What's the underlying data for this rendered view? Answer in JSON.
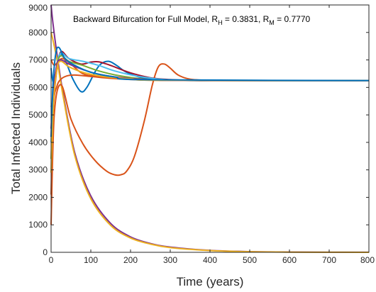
{
  "chart_data": {
    "type": "line",
    "title": "Backward Bifurcation for Full Model, R",
    "title_parts": {
      "prefix": "Backward Bifurcation for Full Model, R",
      "sub_h": "H",
      "mid": " = 0.3831, R",
      "sub_m": "M",
      "suffix": " = 0.7770"
    },
    "xlabel": "Time (years)",
    "ylabel": "Total Infected Individuals",
    "xlim": [
      0,
      800
    ],
    "ylim": [
      0,
      9000
    ],
    "xticks": [
      0,
      100,
      200,
      300,
      400,
      500,
      600,
      700,
      800
    ],
    "yticks": [
      0,
      1000,
      2000,
      3000,
      4000,
      5000,
      6000,
      7000,
      8000,
      9000
    ],
    "grid": false,
    "series": [
      {
        "color": "#7E2F8E",
        "x": [
          0,
          5,
          15,
          30,
          60,
          100,
          150,
          200,
          250,
          300,
          400,
          500,
          600,
          700,
          800
        ],
        "y": [
          9000,
          8300,
          7200,
          5800,
          3600,
          2050,
          1050,
          560,
          320,
          190,
          70,
          25,
          10,
          4,
          2
        ]
      },
      {
        "color": "#EDB120",
        "x": [
          0,
          5,
          15,
          30,
          60,
          100,
          150,
          200,
          250,
          300,
          400,
          500,
          600,
          700,
          800
        ],
        "y": [
          8000,
          7700,
          7000,
          5700,
          3500,
          1950,
          980,
          520,
          300,
          170,
          65,
          22,
          8,
          3,
          1
        ]
      },
      {
        "color": "#0072BD",
        "x": [
          0,
          5,
          12,
          22,
          35,
          55,
          75,
          90,
          110,
          125,
          145,
          165,
          190,
          230,
          280,
          350,
          450,
          600,
          800
        ],
        "y": [
          6700,
          6200,
          6600,
          7200,
          7000,
          6300,
          5850,
          6000,
          6550,
          6850,
          6950,
          6800,
          6550,
          6350,
          6280,
          6250,
          6250,
          6250,
          6250
        ]
      },
      {
        "color": "#D95319",
        "x": [
          0,
          8,
          25,
          50,
          80,
          110,
          140,
          160,
          175,
          190,
          210,
          235,
          255,
          270,
          285,
          300,
          320,
          350,
          400,
          500,
          800
        ],
        "y": [
          1000,
          5000,
          6100,
          4850,
          3950,
          3350,
          2950,
          2820,
          2820,
          2950,
          3500,
          4800,
          6100,
          6750,
          6850,
          6700,
          6450,
          6300,
          6260,
          6250,
          6250
        ]
      },
      {
        "color": "#D95319",
        "x": [
          0,
          6,
          15,
          25,
          40,
          60,
          100,
          150,
          200,
          300,
          800
        ],
        "y": [
          2100,
          5300,
          6050,
          6300,
          6420,
          6450,
          6400,
          6330,
          6290,
          6255,
          6250
        ]
      },
      {
        "color": "#D95319",
        "x": [
          0,
          8,
          18,
          30,
          50,
          80,
          120,
          200,
          300,
          800
        ],
        "y": [
          7000,
          6800,
          6950,
          7050,
          6850,
          6500,
          6400,
          6330,
          6260,
          6250
        ]
      },
      {
        "color": "#A2142F",
        "x": [
          0,
          6,
          15,
          25,
          45,
          75,
          100,
          120,
          150,
          200,
          260,
          340,
          450,
          800
        ],
        "y": [
          5300,
          5600,
          6700,
          7300,
          7050,
          6850,
          6920,
          6930,
          6800,
          6530,
          6330,
          6260,
          6250,
          6250
        ]
      },
      {
        "color": "#4DBEEE",
        "x": [
          0,
          6,
          15,
          25,
          45,
          80,
          120,
          160,
          220,
          300,
          400,
          800
        ],
        "y": [
          4000,
          5700,
          6850,
          7250,
          7050,
          6950,
          6800,
          6600,
          6400,
          6270,
          6250,
          6250
        ]
      },
      {
        "color": "#77AC30",
        "x": [
          0,
          6,
          15,
          25,
          45,
          80,
          120,
          170,
          230,
          320,
          800
        ],
        "y": [
          3400,
          5600,
          6800,
          7150,
          6950,
          6800,
          6600,
          6430,
          6310,
          6255,
          6250
        ]
      },
      {
        "color": "#7E2F8E",
        "x": [
          0,
          6,
          15,
          25,
          45,
          80,
          120,
          180,
          260,
          340,
          800
        ],
        "y": [
          4500,
          5900,
          6850,
          7000,
          6850,
          6650,
          6480,
          6350,
          6275,
          6252,
          6250
        ]
      },
      {
        "color": "#EDB120",
        "x": [
          0,
          6,
          15,
          25,
          45,
          80,
          130,
          200,
          280,
          800
        ],
        "y": [
          2900,
          5400,
          6700,
          6950,
          6750,
          6550,
          6400,
          6310,
          6260,
          6250
        ]
      },
      {
        "color": "#0072BD",
        "x": [
          0,
          5,
          12,
          20,
          35,
          60,
          100,
          160,
          240,
          800
        ],
        "y": [
          4200,
          6150,
          7250,
          7450,
          7050,
          6800,
          6550,
          6380,
          6280,
          6250
        ]
      }
    ]
  }
}
